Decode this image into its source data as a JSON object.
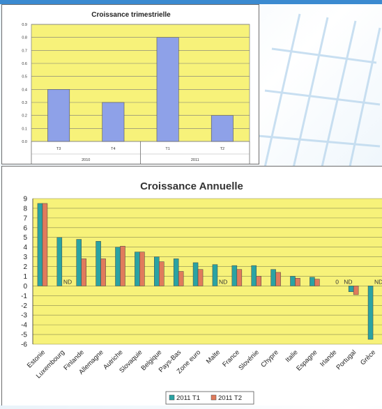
{
  "chart_data": [
    {
      "type": "bar",
      "title": "Croissance trimestrielle",
      "categories": [
        "T3",
        "T4",
        "T1",
        "T2"
      ],
      "groups": [
        {
          "label": "2010",
          "members": [
            "T3",
            "T4"
          ]
        },
        {
          "label": "2011",
          "members": [
            "T1",
            "T2"
          ]
        }
      ],
      "values": [
        0.4,
        0.3,
        0.8,
        0.2
      ],
      "ylim": [
        0,
        0.9
      ],
      "yticks": [
        "0.0",
        "0.1",
        "0.2",
        "0.3",
        "0.4",
        "0.5",
        "0.6",
        "0.7",
        "0.8",
        "0.9"
      ],
      "grid": true,
      "colors": {
        "bar": "#8ea1e8",
        "plot_bg": "#f7f27a"
      }
    },
    {
      "type": "bar",
      "title": "Croissance Annuelle",
      "categories": [
        "Estonie",
        "Luxembourg",
        "Finlande",
        "Allemagne",
        "Autriche",
        "Slovaquie",
        "Belgique",
        "Pays-Bas",
        "Zone euro",
        "Malte",
        "France",
        "Slovénie",
        "Chypre",
        "Italie",
        "Espagne",
        "Irlande",
        "Portugal",
        "Grèce"
      ],
      "series": [
        {
          "name": "2011 T1",
          "color": "#2aa3a3",
          "values": [
            8.5,
            5.0,
            4.8,
            4.6,
            4.0,
            3.5,
            3.0,
            2.8,
            2.4,
            2.2,
            2.1,
            2.1,
            1.7,
            1.0,
            0.9,
            null,
            -0.6,
            -5.5
          ]
        },
        {
          "name": "2011 T2",
          "color": "#e07b5c",
          "values": [
            8.5,
            null,
            2.8,
            2.8,
            4.1,
            3.5,
            2.5,
            1.5,
            1.7,
            null,
            1.7,
            1.0,
            1.4,
            0.8,
            0.7,
            null,
            -0.9,
            null
          ]
        }
      ],
      "annotations": [
        {
          "category": "Luxembourg",
          "text": "ND"
        },
        {
          "category": "Malte",
          "text": "ND"
        },
        {
          "category": "Irlande",
          "text": "0"
        },
        {
          "category": "Irlande",
          "text": "ND"
        },
        {
          "category": "Grèce",
          "text": "ND"
        }
      ],
      "ylim": [
        -6,
        9
      ],
      "yticks": [
        "-6",
        "-5",
        "-4",
        "-3",
        "-2",
        "-1",
        "0",
        "1",
        "2",
        "3",
        "4",
        "5",
        "6",
        "7",
        "8",
        "9"
      ],
      "grid": true,
      "legend": "bottom",
      "colors": {
        "plot_bg": "#f7f27a"
      }
    }
  ]
}
